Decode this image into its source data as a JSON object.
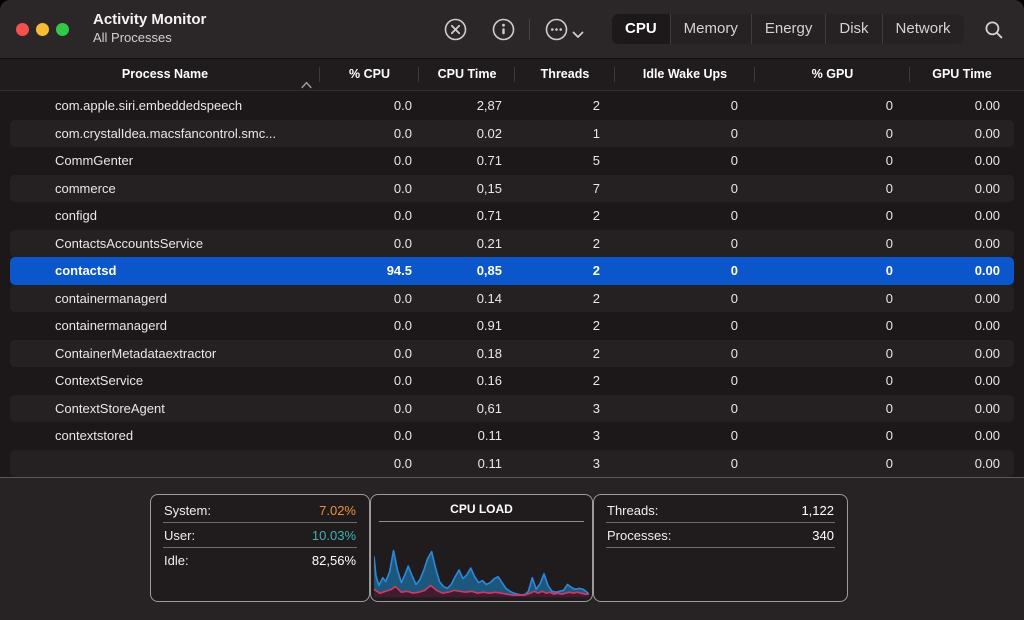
{
  "window": {
    "title": "Activity Monitor",
    "subtitle": "All Processes"
  },
  "toolbar": {
    "buttons": [
      {
        "name": "quit-process",
        "icon": "x-circle-icon"
      },
      {
        "name": "inspect",
        "icon": "info-circle-icon"
      },
      {
        "name": "more-options",
        "icon": "ellipsis-circle-icon",
        "chevron": "chevron-down-icon"
      }
    ],
    "tabs": [
      {
        "label": "CPU",
        "active": true
      },
      {
        "label": "Memory",
        "active": false
      },
      {
        "label": "Energy",
        "active": false
      },
      {
        "label": "Disk",
        "active": false
      },
      {
        "label": "Network",
        "active": false
      }
    ],
    "search_icon": "magnifier-icon"
  },
  "table": {
    "columns": [
      {
        "label": "Process Name",
        "sort": "asc"
      },
      {
        "label": "% CPU"
      },
      {
        "label": "CPU Time"
      },
      {
        "label": "Threads"
      },
      {
        "label": "Idle Wake Ups"
      },
      {
        "label": "% GPU"
      },
      {
        "label": "GPU Time"
      }
    ],
    "rows": [
      {
        "name": "com.apple.siri.embeddedspeech",
        "cpu": "0.0",
        "cpu_time": "2,87",
        "threads": "2",
        "idle_wake_ups": "0",
        "gpu": "0",
        "gpu_time": "0.00",
        "selected": false
      },
      {
        "name": "com.crystalIdea.macsfancontrol.smc...",
        "cpu": "0.0",
        "cpu_time": "0.02",
        "threads": "1",
        "idle_wake_ups": "0",
        "gpu": "0",
        "gpu_time": "0.00",
        "selected": false
      },
      {
        "name": "CommGenter",
        "cpu": "0.0",
        "cpu_time": "0.71",
        "threads": "5",
        "idle_wake_ups": "0",
        "gpu": "0",
        "gpu_time": "0.00",
        "selected": false
      },
      {
        "name": "commerce",
        "cpu": "0.0",
        "cpu_time": "0,15",
        "threads": "7",
        "idle_wake_ups": "0",
        "gpu": "0",
        "gpu_time": "0.00",
        "selected": false
      },
      {
        "name": "configd",
        "cpu": "0.0",
        "cpu_time": "0.71",
        "threads": "2",
        "idle_wake_ups": "0",
        "gpu": "0",
        "gpu_time": "0.00",
        "selected": false
      },
      {
        "name": "ContactsAccountsService",
        "cpu": "0.0",
        "cpu_time": "0.21",
        "threads": "2",
        "idle_wake_ups": "0",
        "gpu": "0",
        "gpu_time": "0.00",
        "selected": false
      },
      {
        "name": "contactsd",
        "cpu": "94.5",
        "cpu_time": "0,85",
        "threads": "2",
        "idle_wake_ups": "0",
        "gpu": "0",
        "gpu_time": "0.00",
        "selected": true
      },
      {
        "name": "containermanagerd",
        "cpu": "0.0",
        "cpu_time": "0.14",
        "threads": "2",
        "idle_wake_ups": "0",
        "gpu": "0",
        "gpu_time": "0.00",
        "selected": false
      },
      {
        "name": "containermanagerd",
        "cpu": "0.0",
        "cpu_time": "0.91",
        "threads": "2",
        "idle_wake_ups": "0",
        "gpu": "0",
        "gpu_time": "0.00",
        "selected": false
      },
      {
        "name": "ContainerMetadataextractor",
        "cpu": "0.0",
        "cpu_time": "0.18",
        "threads": "2",
        "idle_wake_ups": "0",
        "gpu": "0",
        "gpu_time": "0.00",
        "selected": false
      },
      {
        "name": "ContextService",
        "cpu": "0.0",
        "cpu_time": "0.16",
        "threads": "2",
        "idle_wake_ups": "0",
        "gpu": "0",
        "gpu_time": "0.00",
        "selected": false
      },
      {
        "name": "ContextStoreAgent",
        "cpu": "0.0",
        "cpu_time": "0,61",
        "threads": "3",
        "idle_wake_ups": "0",
        "gpu": "0",
        "gpu_time": "0.00",
        "selected": false
      },
      {
        "name": "contextstored",
        "cpu": "0.0",
        "cpu_time": "0.11",
        "threads": "3",
        "idle_wake_ups": "0",
        "gpu": "0",
        "gpu_time": "0.00",
        "selected": false
      },
      {
        "name": "",
        "cpu": "0.0",
        "cpu_time": "0.11",
        "threads": "3",
        "idle_wake_ups": "0",
        "gpu": "0",
        "gpu_time": "0.00",
        "selected": false
      }
    ]
  },
  "footer": {
    "left_stats": [
      {
        "label": "System:",
        "value": "7.02%",
        "color": "#e8913a"
      },
      {
        "label": "User:",
        "value": "10.03%",
        "color": "#3db4ae"
      },
      {
        "label": "Idle:",
        "value": "82,56%",
        "color": "#ffffff"
      }
    ],
    "cpu_load": {
      "title": "CPU LOAD",
      "series": [
        {
          "name": "user",
          "stroke": "#2f86d6",
          "fill": "rgba(28,93,133,0.92)",
          "points": [
            [
              0,
              16
            ],
            [
              2,
              36
            ],
            [
              5,
              46
            ],
            [
              9,
              38
            ],
            [
              12,
              42
            ],
            [
              16,
              32
            ],
            [
              20,
              10
            ],
            [
              24,
              30
            ],
            [
              28,
              43
            ],
            [
              32,
              34
            ],
            [
              35,
              26
            ],
            [
              39,
              36
            ],
            [
              43,
              45
            ],
            [
              47,
              40
            ],
            [
              51,
              30
            ],
            [
              55,
              18
            ],
            [
              59,
              11
            ],
            [
              63,
              28
            ],
            [
              67,
              42
            ],
            [
              71,
              47
            ],
            [
              75,
              49
            ],
            [
              79,
              45
            ],
            [
              83,
              37
            ],
            [
              87,
              30
            ],
            [
              91,
              39
            ],
            [
              95,
              35
            ],
            [
              99,
              28
            ],
            [
              103,
              37
            ],
            [
              107,
              43
            ],
            [
              111,
              41
            ],
            [
              115,
              45
            ],
            [
              119,
              43
            ],
            [
              123,
              39
            ],
            [
              127,
              37
            ],
            [
              131,
              43
            ],
            [
              135,
              49
            ],
            [
              139,
              52
            ],
            [
              143,
              54
            ],
            [
              147,
              55
            ],
            [
              151,
              56
            ],
            [
              155,
              55
            ],
            [
              158,
              52
            ],
            [
              162,
              38
            ],
            [
              166,
              50
            ],
            [
              170,
              44
            ],
            [
              174,
              34
            ],
            [
              178,
              46
            ],
            [
              182,
              52
            ],
            [
              186,
              53
            ],
            [
              190,
              52
            ],
            [
              194,
              51
            ],
            [
              198,
              45
            ],
            [
              202,
              48
            ],
            [
              206,
              50
            ],
            [
              210,
              49
            ],
            [
              214,
              50
            ],
            [
              218,
              53
            ],
            [
              220,
              55
            ]
          ]
        },
        {
          "name": "system",
          "stroke": "#cb3a67",
          "fill": "rgba(70,24,42,0.95)",
          "points": [
            [
              0,
              50
            ],
            [
              6,
              54
            ],
            [
              12,
              52
            ],
            [
              18,
              50
            ],
            [
              22,
              47
            ],
            [
              28,
              53
            ],
            [
              34,
              52
            ],
            [
              40,
              54
            ],
            [
              46,
              53
            ],
            [
              52,
              51
            ],
            [
              58,
              46
            ],
            [
              64,
              51
            ],
            [
              70,
              54
            ],
            [
              76,
              53
            ],
            [
              82,
              51
            ],
            [
              88,
              52
            ],
            [
              94,
              53
            ],
            [
              100,
              52
            ],
            [
              106,
              54
            ],
            [
              112,
              53
            ],
            [
              118,
              54
            ],
            [
              124,
              53
            ],
            [
              130,
              54
            ],
            [
              136,
              55
            ],
            [
              142,
              56
            ],
            [
              148,
              56
            ],
            [
              154,
              56
            ],
            [
              160,
              54
            ],
            [
              164,
              52
            ],
            [
              168,
              54
            ],
            [
              172,
              52
            ],
            [
              176,
              54
            ],
            [
              180,
              53
            ],
            [
              184,
              55
            ],
            [
              188,
              54
            ],
            [
              192,
              55
            ],
            [
              196,
              54
            ],
            [
              200,
              53
            ],
            [
              204,
              54
            ],
            [
              208,
              53
            ],
            [
              212,
              54
            ],
            [
              216,
              55
            ],
            [
              220,
              55
            ]
          ]
        }
      ],
      "baseline_y": 58,
      "x_range": [
        0,
        220
      ],
      "y_range": [
        0,
        60
      ]
    },
    "right_stats": [
      {
        "label": "Threads:",
        "value": "1,122"
      },
      {
        "label": "Processes:",
        "value": "340"
      }
    ]
  },
  "colors": {
    "selection": "#0a56ca",
    "accent_orange": "#e8913a",
    "accent_teal": "#3db4ae"
  }
}
